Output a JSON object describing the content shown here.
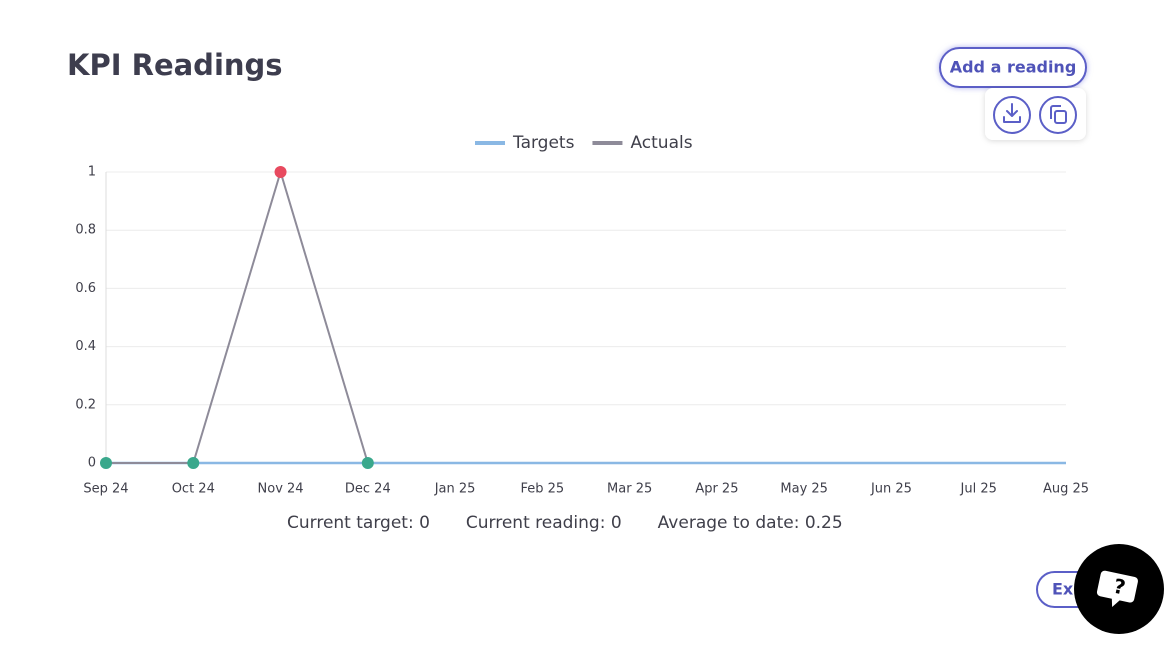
{
  "page": {
    "title": "KPI Readings",
    "add_button": "Add a reading",
    "export_button": "Ex"
  },
  "chart_data": {
    "type": "line",
    "categories": [
      "Sep 24",
      "Oct 24",
      "Nov 24",
      "Dec 24",
      "Jan 25",
      "Feb 25",
      "Mar 25",
      "Apr 25",
      "May 25",
      "Jun 25",
      "Jul 25",
      "Aug 25"
    ],
    "series": [
      {
        "name": "Targets",
        "color": "#8ab8e4",
        "values": [
          0,
          0,
          0,
          0,
          0,
          0,
          0,
          0,
          0,
          0,
          0,
          0
        ]
      },
      {
        "name": "Actuals",
        "color": "#8e8b99",
        "values": [
          0,
          0,
          1,
          0,
          null,
          null,
          null,
          null,
          null,
          null,
          null,
          null
        ],
        "marker_colors": [
          "#3aa88c",
          "#3aa88c",
          "#e84a5f",
          "#3aa88c",
          null,
          null,
          null,
          null,
          null,
          null,
          null,
          null
        ]
      }
    ],
    "ylim": [
      0,
      1
    ],
    "yticks": [
      0,
      0.2,
      0.4,
      0.6,
      0.8,
      1
    ],
    "grid": true,
    "legend": "top"
  },
  "summary": [
    "Current target: 0",
    "Current reading: 0",
    "Average to date: 0.25"
  ]
}
